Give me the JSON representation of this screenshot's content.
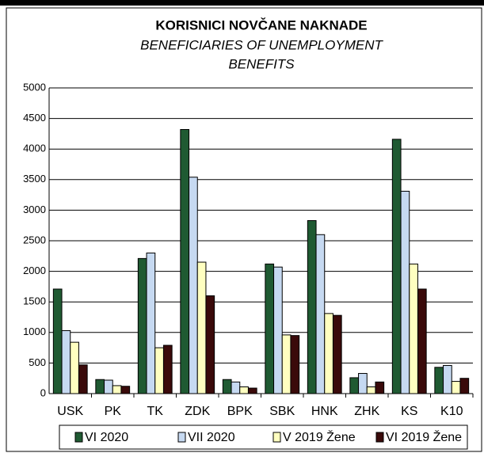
{
  "chart_data": {
    "type": "bar",
    "title": "KORISNICI NOVČANE NAKNADE",
    "subtitle": [
      "BENEFICIARIES OF UNEMPLOYMENT",
      "BENEFITS"
    ],
    "categories": [
      "USK",
      "PK",
      "TK",
      "ZDK",
      "BPK",
      "SBK",
      "HNK",
      "ZHK",
      "KS",
      "K10"
    ],
    "series": [
      {
        "name": "VI 2020",
        "color": "#1f5a32",
        "values": [
          1710,
          230,
          2210,
          4320,
          230,
          2120,
          2830,
          260,
          4160,
          430
        ]
      },
      {
        "name": "VII 2020",
        "color": "#c6d9f1",
        "values": [
          1030,
          220,
          2300,
          3540,
          190,
          2070,
          2600,
          330,
          3310,
          460
        ]
      },
      {
        "name": "V 2019 Žene",
        "color": "#ffffc0",
        "values": [
          840,
          130,
          750,
          2150,
          110,
          960,
          1310,
          110,
          2120,
          200
        ]
      },
      {
        "name": "VI 2019 Žene",
        "color": "#3a0a0a",
        "values": [
          470,
          120,
          790,
          1600,
          90,
          950,
          1280,
          190,
          1710,
          250
        ]
      }
    ],
    "ylim": [
      0,
      5000
    ],
    "yticks": [
      0,
      500,
      1000,
      1500,
      2000,
      2500,
      3000,
      3500,
      4000,
      4500,
      5000
    ],
    "grid": true,
    "legend": "bottom"
  }
}
